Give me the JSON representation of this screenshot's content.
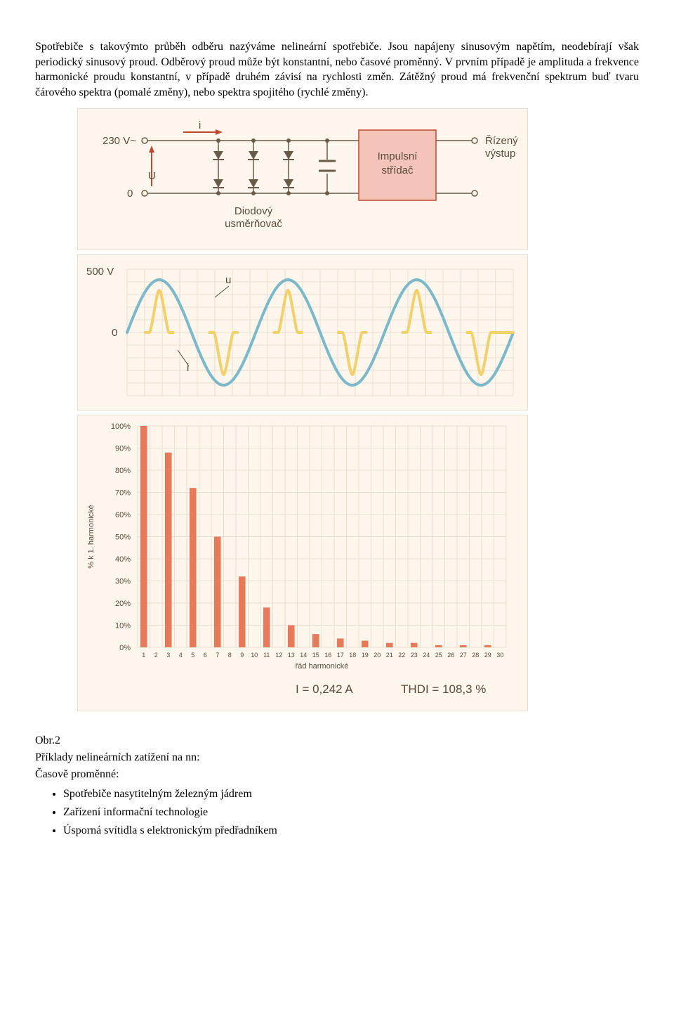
{
  "paragraphs": {
    "p1": "Spotřebiče s takovýmto průběh odběru nazýváme nelineární spotřebiče. Jsou napájeny sinusovým napětím, neodebírají však periodický sinusový proud. Odběrový proud může být konstantní, nebo časové proměnný. V prvním případě je amplituda a frekvence harmonické proudu konstantní, v případě druhém závisí na rychlosti změn. Zátěžný proud má frekvenční spektrum buď tvaru čárového spektra (pomalé změny), nebo spektra spojitého (rychlé změny)."
  },
  "circuit": {
    "left_top": "230 V~",
    "left_bottom": "0",
    "u_label": "U",
    "i_label": "i",
    "block_top": "Impulsní",
    "block_bottom": "střídač",
    "right_top": "Řízený",
    "right_bottom": "výstup",
    "rect_label_top": "Diodový",
    "rect_label_bottom": "usměrňovač",
    "block_fill": "#f4c4b8",
    "block_stroke": "#c04830",
    "wire_color": "#6a5a48",
    "text_color": "#5a4a3a"
  },
  "waveform": {
    "y_top_label": "500 V",
    "y_zero_label": "0",
    "u_label": "u",
    "i_label": "i",
    "grid_color": "#e6dfd2",
    "u_stroke": "#7bb8c9",
    "i_stroke": "#f2d06b",
    "u_width": 4,
    "i_width": 4,
    "bg": "#fdf6ec",
    "text_color": "#5a4a3a"
  },
  "bars": {
    "bar_color": "#e77a5a",
    "grid_color": "#e6dfd2",
    "bg": "#fdf6ec",
    "text_color": "#5a4a3a",
    "ylabel": "% k 1. harmonické",
    "xlabel": "řád harmonické",
    "y_ticks": [
      "0%",
      "10%",
      "20%",
      "30%",
      "40%",
      "50%",
      "60%",
      "70%",
      "80%",
      "90%",
      "100%"
    ],
    "categories": [
      "1",
      "2",
      "3",
      "4",
      "5",
      "6",
      "7",
      "8",
      "9",
      "10",
      "11",
      "12",
      "13",
      "14",
      "15",
      "16",
      "17",
      "18",
      "19",
      "20",
      "21",
      "22",
      "23",
      "24",
      "25",
      "26",
      "27",
      "28",
      "29",
      "30"
    ],
    "values": [
      100,
      0,
      88,
      0,
      72,
      0,
      50,
      0,
      32,
      0,
      18,
      0,
      10,
      0,
      6,
      0,
      4,
      0,
      3,
      0,
      2,
      0,
      2,
      0,
      1,
      0,
      1,
      0,
      1,
      0
    ],
    "footer_left_label": "I =",
    "footer_left_value": "0,242 A",
    "footer_right_label": "THDI =",
    "footer_right_value": "108,3 %"
  },
  "caption": {
    "fig_no": "Obr.2",
    "heading": "Příklady nelineárních zatížení na nn:",
    "subheading": "Časově proměnné:",
    "items": [
      "Spotřebiče  nasytitelným železným jádrem",
      "Zařízení informační technologie",
      "Úsporná svítidla s elektronickým předřadníkem"
    ]
  }
}
